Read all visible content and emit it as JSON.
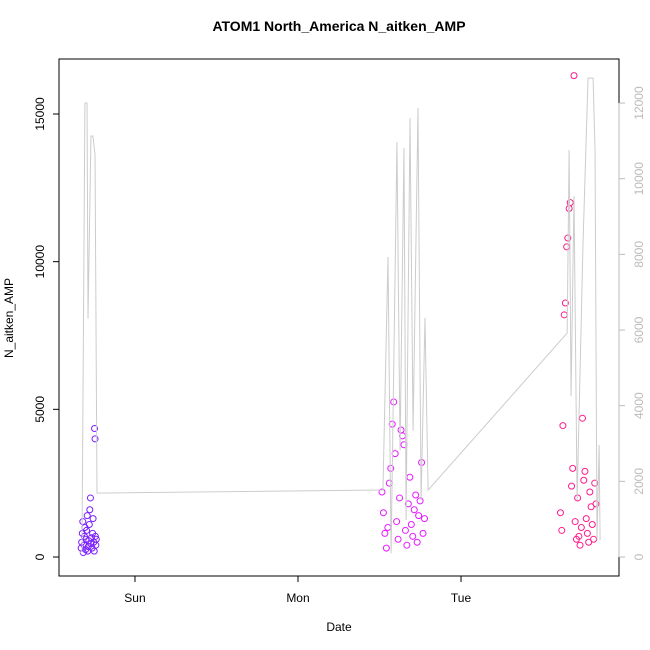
{
  "chart_data": {
    "type": "scatter",
    "title": "ATOM1 North_America N_aitken_AMP",
    "x_label": "Date",
    "y_label": "N_aitken_AMP",
    "xlim": [
      -0.466,
      2.969
    ],
    "xticks": [
      {
        "value": 0,
        "label": "Sun"
      },
      {
        "value": 1,
        "label": "Mon"
      },
      {
        "value": 2,
        "label": "Tue"
      }
    ],
    "ylim": [
      -643,
      16862
    ],
    "yticks": [
      0,
      5000,
      10000,
      15000
    ],
    "y2lim": [
      -502,
      13164
    ],
    "y2ticks": [
      0,
      2000,
      4000,
      6000,
      8000,
      10000,
      12000
    ],
    "y2color": "#bbbbbb",
    "series": [
      {
        "color": "#7b1fff",
        "x": [
          -0.33,
          -0.327,
          -0.323,
          -0.32,
          -0.317,
          -0.313,
          -0.31,
          -0.307,
          -0.303,
          -0.3,
          -0.297,
          -0.293,
          -0.29,
          -0.287,
          -0.283,
          -0.28,
          -0.277,
          -0.273,
          -0.245,
          -0.248,
          -0.27,
          -0.267,
          -0.263,
          -0.26,
          -0.257,
          -0.253,
          -0.25,
          -0.243,
          -0.24,
          -0.237
        ],
        "values": [
          300,
          500,
          800,
          1200,
          150,
          400,
          700,
          1000,
          250,
          600,
          900,
          1400,
          200,
          350,
          550,
          1100,
          1600,
          2000,
          4000,
          4350,
          450,
          650,
          300,
          800,
          1300,
          500,
          200,
          700,
          400,
          600
        ]
      },
      {
        "color": "#e61bff",
        "x": [
          1.515,
          1.524,
          1.533,
          1.542,
          1.551,
          1.56,
          1.569,
          1.578,
          1.587,
          1.596,
          1.605,
          1.614,
          1.623,
          1.632,
          1.641,
          1.65,
          1.659,
          1.668,
          1.677,
          1.686,
          1.695,
          1.704,
          1.713,
          1.722,
          1.731,
          1.74,
          1.749,
          1.758,
          1.767,
          1.776
        ],
        "values": [
          2200,
          1500,
          800,
          300,
          1000,
          2500,
          3000,
          4500,
          5250,
          3500,
          1200,
          600,
          2000,
          4300,
          4100,
          3800,
          900,
          400,
          1800,
          2700,
          1100,
          700,
          1600,
          2100,
          500,
          1400,
          1900,
          3200,
          800,
          1300
        ]
      },
      {
        "color": "#ff1a8c",
        "x": [
          2.61,
          2.618,
          2.625,
          2.633,
          2.64,
          2.648,
          2.655,
          2.663,
          2.67,
          2.678,
          2.685,
          2.693,
          2.7,
          2.708,
          2.715,
          2.723,
          2.73,
          2.738,
          2.745,
          2.753,
          2.76,
          2.768,
          2.775,
          2.783,
          2.79,
          2.798,
          2.805,
          2.813,
          2.82,
          2.828
        ],
        "values": [
          1500,
          900,
          4450,
          8200,
          8600,
          10500,
          10800,
          11800,
          12000,
          2400,
          3000,
          16300,
          1200,
          600,
          2000,
          700,
          400,
          1000,
          4700,
          2600,
          2900,
          1300,
          800,
          500,
          2200,
          1700,
          1100,
          600,
          2500,
          1800
        ]
      },
      {
        "type": "line",
        "axis": "y2",
        "color": "#cccccc",
        "x": [
          -0.337,
          -0.325,
          -0.307,
          -0.294,
          -0.288,
          -0.27,
          -0.258,
          -0.245,
          -0.233,
          1.521,
          1.552,
          1.571,
          1.607,
          1.626,
          1.65,
          1.663,
          1.687,
          1.706,
          1.736,
          1.755,
          1.779,
          1.798,
          2.651,
          2.663,
          2.675,
          2.693,
          2.712,
          2.748,
          2.779,
          2.81,
          2.822,
          2.834,
          2.847,
          2.853
        ],
        "values": [
          100,
          185,
          12000,
          12000,
          6300,
          11130,
          11130,
          10630,
          1690,
          1770,
          7930,
          100,
          10970,
          2820,
          10810,
          980,
          11600,
          3340,
          11870,
          1500,
          6320,
          1770,
          5920,
          10760,
          4250,
          9540,
          1500,
          8250,
          12660,
          12660,
          10760,
          450,
          2960,
          450
        ]
      }
    ]
  }
}
